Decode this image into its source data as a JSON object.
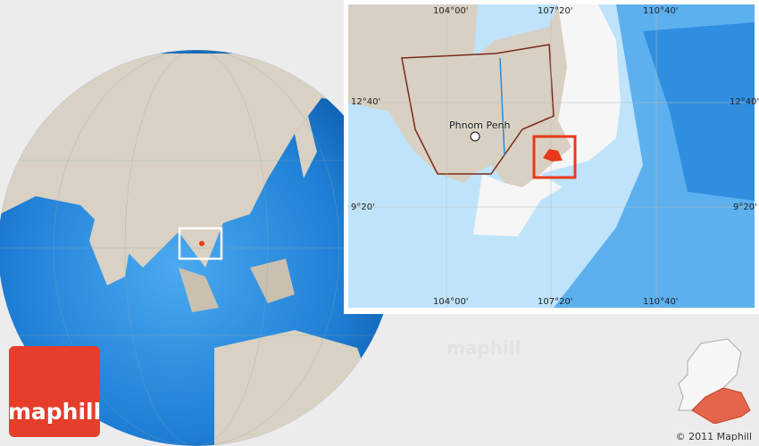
{
  "brand": {
    "logo_text": "maphill",
    "watermark": "maphill",
    "copyright": "© 2011 Maphill"
  },
  "inset": {
    "longitudes": [
      "104°00'",
      "107°20'",
      "110°40'"
    ],
    "latitudes": [
      "12°40'",
      "9°20'"
    ],
    "capital": "Phnom Penh"
  },
  "colors": {
    "land": "#d8d0c2",
    "ocean": "#3d9ee8",
    "highlight": "#e8391c",
    "frame": "#ffffff"
  }
}
